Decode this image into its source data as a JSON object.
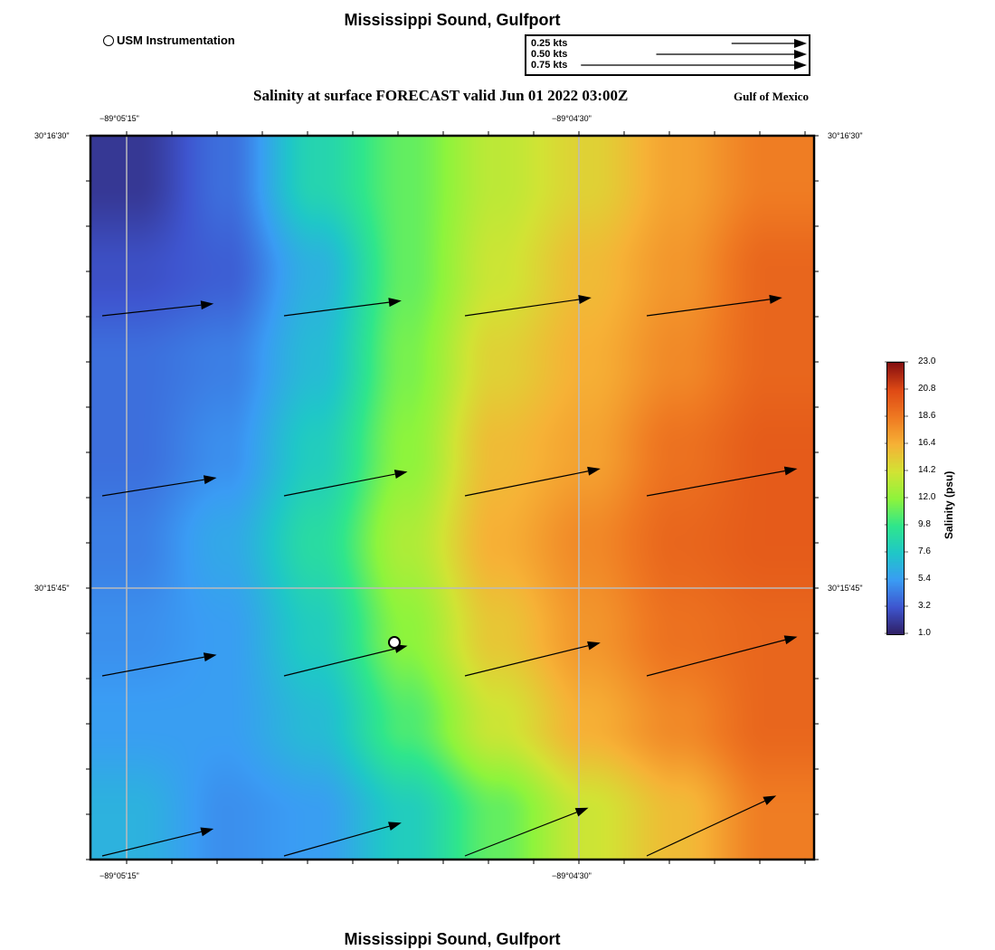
{
  "header": {
    "title": "Mississippi Sound, Gulfport",
    "subtitle": "Salinity at surface FORECAST valid Jun 01 2022 03:00Z",
    "region": "Gulf of Mexico",
    "station_legend": "USM Instrumentation",
    "footer_title": "Mississippi Sound, Gulfport"
  },
  "vector_legend": [
    {
      "label": "0.25 kts",
      "speed": 0.25
    },
    {
      "label": "0.50 kts",
      "speed": 0.5
    },
    {
      "label": "0.75 kts",
      "speed": 0.75
    }
  ],
  "axes": {
    "x_ticks": [
      "−89°05'15\"",
      "−89°04'30\""
    ],
    "y_ticks": [
      "30°16'30\"",
      "30°15'45\""
    ]
  },
  "colorbar": {
    "title": "Salinity (psu)",
    "min": 1.0,
    "max": 23.0,
    "ticks": [
      "23.0",
      "20.8",
      "18.6",
      "16.4",
      "14.2",
      "12.0",
      "9.8",
      "7.6",
      "5.4",
      "3.2",
      "1.0"
    ],
    "colors": [
      "#2f1f63",
      "#3e55cf",
      "#3a9cf4",
      "#1fc7c8",
      "#2fe68c",
      "#8ef43c",
      "#d2e334",
      "#f6b236",
      "#ef7a22",
      "#df4a15",
      "#861010"
    ]
  },
  "chart_data": {
    "type": "heatmap",
    "variable": "Salinity (psu)",
    "grid_rows_top_to_bottom": [
      [
        2.0,
        4.0,
        8.5,
        11.0,
        13.5,
        15.0,
        17.0,
        18.5
      ],
      [
        3.0,
        3.5,
        6.5,
        11.0,
        14.0,
        16.0,
        17.5,
        19.5
      ],
      [
        4.0,
        4.5,
        7.0,
        11.5,
        15.0,
        16.5,
        18.0,
        19.5
      ],
      [
        4.0,
        5.0,
        8.0,
        12.0,
        16.0,
        17.0,
        19.0,
        20.0
      ],
      [
        4.5,
        6.0,
        9.0,
        13.0,
        16.5,
        18.0,
        19.5,
        20.0
      ],
      [
        5.0,
        5.5,
        8.0,
        12.0,
        15.5,
        17.5,
        19.0,
        19.5
      ],
      [
        5.5,
        5.5,
        7.0,
        10.5,
        14.0,
        16.5,
        18.0,
        19.5
      ],
      [
        6.5,
        5.0,
        5.5,
        8.0,
        11.0,
        14.0,
        16.0,
        18.5
      ]
    ],
    "currents_kts_rows_top_to_bottom": [
      [
        [
          0.37,
          0.04
        ],
        [
          0.39,
          0.05
        ],
        [
          0.42,
          0.06
        ],
        [
          0.45,
          0.06
        ]
      ],
      [
        [
          0.38,
          0.06
        ],
        [
          0.41,
          0.08
        ],
        [
          0.45,
          0.09
        ],
        [
          0.5,
          0.09
        ]
      ],
      [
        [
          0.38,
          0.07
        ],
        [
          0.41,
          0.1
        ],
        [
          0.45,
          0.11
        ],
        [
          0.5,
          0.13
        ]
      ],
      [
        [
          0.37,
          0.09
        ],
        [
          0.39,
          0.11
        ],
        [
          0.41,
          0.16
        ],
        [
          0.43,
          0.2
        ]
      ]
    ],
    "station": {
      "name": "USM Instrumentation"
    }
  }
}
